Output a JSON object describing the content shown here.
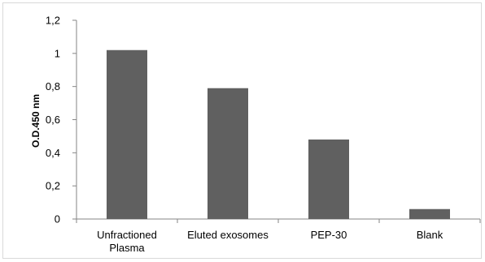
{
  "chart_data": {
    "type": "bar",
    "title": "",
    "xlabel": "",
    "ylabel": "O.D.450 nm",
    "categories": [
      [
        "Unfractioned",
        "Plasma"
      ],
      [
        "Eluted exosomes"
      ],
      [
        "PEP-30"
      ],
      [
        "Blank"
      ]
    ],
    "values": [
      1.02,
      0.79,
      0.48,
      0.06
    ],
    "ylim": [
      0,
      1.2
    ],
    "yticks": [
      0,
      0.2,
      0.4,
      0.6,
      0.8,
      1,
      1.2
    ],
    "ytick_labels": [
      "0",
      "0,2",
      "0,4",
      "0,6",
      "0,8",
      "1",
      "1,2"
    ],
    "grid": false,
    "legend": "none",
    "bar_color": "#606060"
  }
}
